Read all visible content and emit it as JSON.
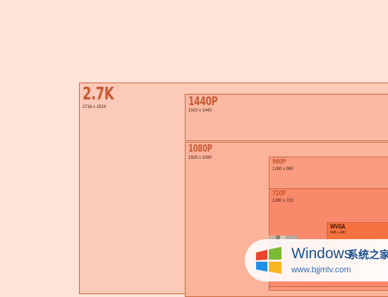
{
  "resolutions": [
    {
      "label": "2.7K",
      "dims": "2716 x 1524"
    },
    {
      "label": "1440P",
      "dims": "1920 x 1440"
    },
    {
      "label": "1080P",
      "dims": "1920 x 1080"
    },
    {
      "label": "960P",
      "dims": "1280 x 960"
    },
    {
      "label": "720P",
      "dims": "1280 x 720"
    },
    {
      "label": "WVGA",
      "dims": "848 x 480"
    }
  ],
  "watermark": {
    "brand": "Windows",
    "brand_cn": "系统之家",
    "url": "www.bjjmlv.com"
  }
}
